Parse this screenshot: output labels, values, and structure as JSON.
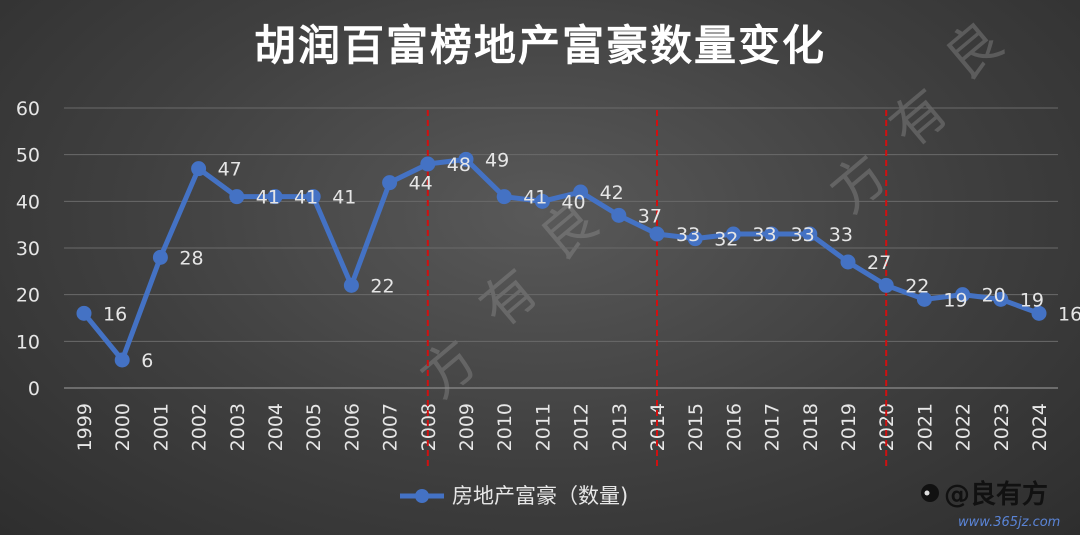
{
  "chart_data": {
    "type": "line",
    "title": "胡润百富榜地产富豪数量变化",
    "categories": [
      "1999",
      "2000",
      "2001",
      "2002",
      "2003",
      "2004",
      "2005",
      "2006",
      "2007",
      "2008",
      "2009",
      "2010",
      "2011",
      "2012",
      "2013",
      "2014",
      "2015",
      "2016",
      "2017",
      "2018",
      "2019",
      "2020",
      "2021",
      "2022",
      "2023",
      "2024"
    ],
    "series": [
      {
        "name": "房地产富豪（数量)",
        "values": [
          16,
          6,
          28,
          47,
          41,
          41,
          41,
          22,
          44,
          48,
          49,
          41,
          40,
          42,
          37,
          33,
          32,
          33,
          33,
          33,
          27,
          22,
          19,
          20,
          19,
          16
        ],
        "data_labels": [
          "16",
          "6",
          "28",
          "47",
          "41",
          "41",
          "41",
          "22",
          "44",
          "48",
          "49",
          "41",
          "40",
          "42",
          "37",
          "33",
          "32",
          "33",
          "33",
          "33",
          "27",
          "22",
          "19",
          "20",
          "19",
          "16"
        ],
        "color": "#4472c4"
      }
    ],
    "ylim": [
      0,
      60
    ],
    "yticks": [
      0,
      10,
      20,
      30,
      40,
      50,
      60
    ],
    "grid": true,
    "legend": "bottom",
    "reference_lines": [
      "2008",
      "2014",
      "2020"
    ],
    "reference_line_color": "#d01010"
  },
  "watermark": {
    "chars": [
      "方",
      "有",
      "良"
    ]
  },
  "brand": {
    "name": "@良有方",
    "url": "www.365jz.com"
  }
}
